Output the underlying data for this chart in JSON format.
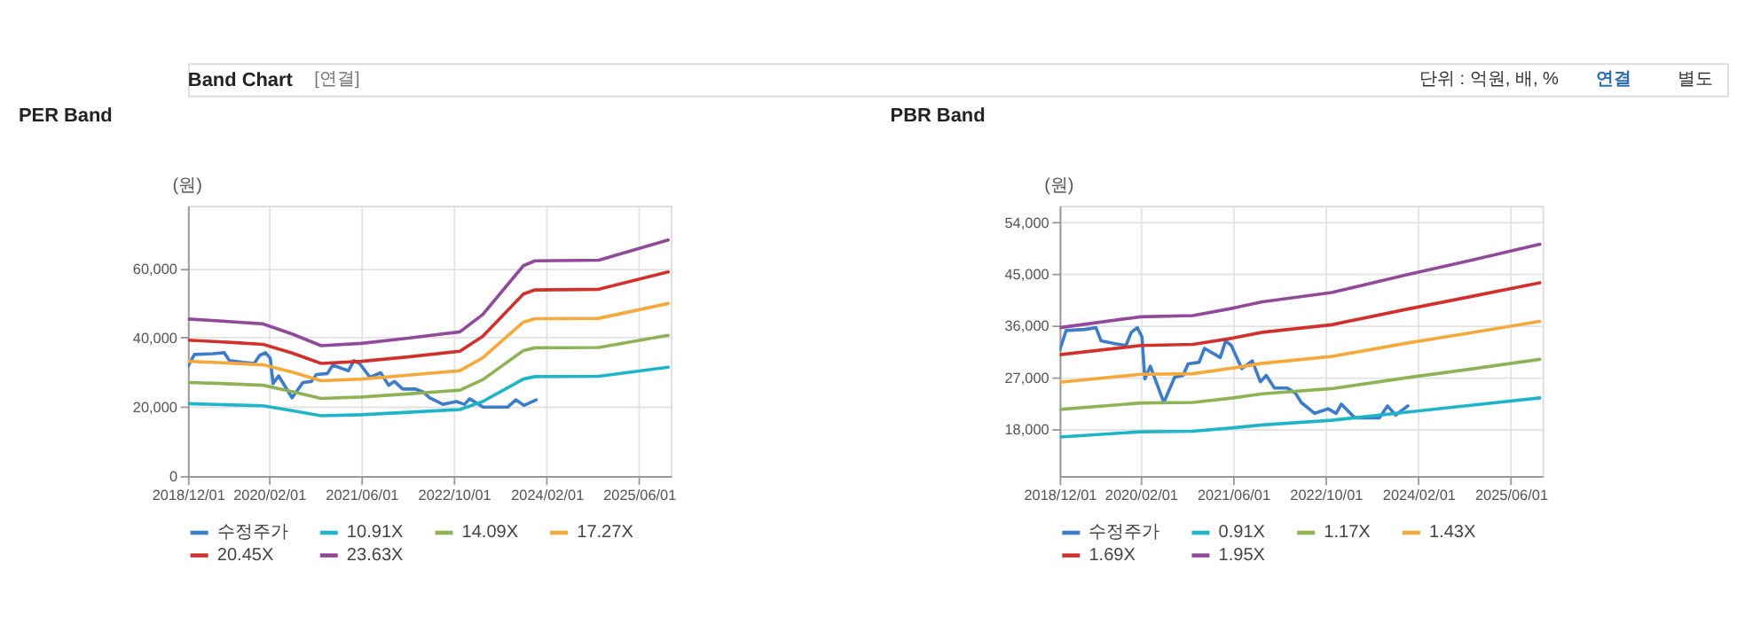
{
  "chart_data": [
    {
      "type": "line",
      "title": "PER Band",
      "ylabel": "(원)",
      "annotations": [
        "Band Chart",
        "[연결]",
        "단위 : 억원, 배, %",
        "연결",
        "별도"
      ],
      "xlim": [
        "2018-12-01",
        "2025-11-15"
      ],
      "xticks": [
        {
          "value": "2018-12-01",
          "label": "2018/12/01"
        },
        {
          "value": "2020-02-01",
          "label": "2020/02/01"
        },
        {
          "value": "2021-06-01",
          "label": "2021/06/01"
        },
        {
          "value": "2022-10-01",
          "label": "2022/10/01"
        },
        {
          "value": "2024-02-01",
          "label": "2024/02/01"
        },
        {
          "value": "2025-06-01",
          "label": "2025/06/01"
        }
      ],
      "ylim": [
        0,
        78000
      ],
      "yticks": [
        {
          "value": 0,
          "label": "0"
        },
        {
          "value": 20000,
          "label": "20,000"
        },
        {
          "value": 40000,
          "label": "40,000"
        },
        {
          "value": 60000,
          "label": "60,000"
        }
      ],
      "grid": true,
      "legend": "bottom",
      "series": [
        {
          "name": "수정주가",
          "color": "#3d7cc9",
          "x": [
            "2018-12-01",
            "2019-01-04",
            "2019-04-13",
            "2019-06-10",
            "2019-07-07",
            "2019-09-19",
            "2019-11-15",
            "2019-12-13",
            "2020-01-13",
            "2020-02-07",
            "2020-02-22",
            "2020-03-22",
            "2020-06-01",
            "2020-07-28",
            "2020-09-10",
            "2020-10-07",
            "2020-12-04",
            "2021-01-01",
            "2021-03-25",
            "2021-04-22",
            "2021-05-22",
            "2021-07-16",
            "2021-09-10",
            "2021-10-22",
            "2021-11-22",
            "2022-01-04",
            "2022-03-13",
            "2022-04-25",
            "2022-05-25",
            "2022-08-04",
            "2022-10-13",
            "2022-11-25",
            "2022-12-22",
            "2023-03-04",
            "2023-07-10",
            "2023-08-22",
            "2023-10-04",
            "2023-12-07"
          ],
          "values": [
            31700,
            35100,
            35300,
            35600,
            33300,
            32800,
            32500,
            34800,
            35600,
            34000,
            26700,
            28900,
            22600,
            27000,
            27300,
            29300,
            29600,
            32000,
            30400,
            33300,
            32500,
            28500,
            29800,
            26200,
            27300,
            25100,
            25100,
            24200,
            22600,
            20700,
            21500,
            20700,
            22300,
            19900,
            19900,
            22000,
            20400,
            22000
          ]
        },
        {
          "name": "10.91X",
          "color": "#1fb5c9",
          "x": [
            "2018-12-01",
            "2019-06-01",
            "2020-01-01",
            "2020-06-01",
            "2020-11-01",
            "2021-06-01",
            "2022-02-01",
            "2022-11-01",
            "2023-03-01",
            "2023-10-01",
            "2023-12-01",
            "2024-11-01",
            "2025-11-01"
          ],
          "values": [
            20900,
            20600,
            20300,
            18900,
            17400,
            17700,
            18400,
            19200,
            21500,
            28000,
            28700,
            28800,
            31400
          ]
        },
        {
          "name": "14.09X",
          "color": "#8db356",
          "x": [
            "2018-12-01",
            "2019-06-01",
            "2020-01-01",
            "2020-06-01",
            "2020-11-01",
            "2021-06-01",
            "2022-02-01",
            "2022-11-01",
            "2023-03-01",
            "2023-10-01",
            "2023-12-01",
            "2024-11-01",
            "2025-11-01"
          ],
          "values": [
            27000,
            26700,
            26200,
            24400,
            22400,
            22800,
            23700,
            24800,
            27800,
            36200,
            37000,
            37100,
            40600
          ]
        },
        {
          "name": "17.27X",
          "color": "#f5a93a",
          "x": [
            "2018-12-01",
            "2019-06-01",
            "2020-01-01",
            "2020-06-01",
            "2020-11-01",
            "2021-06-01",
            "2022-02-01",
            "2022-11-01",
            "2023-03-01",
            "2023-10-01",
            "2023-12-01",
            "2024-11-01",
            "2025-11-01"
          ],
          "values": [
            33100,
            32700,
            32100,
            30000,
            27500,
            28000,
            29100,
            30400,
            34100,
            44400,
            45400,
            45500,
            49800
          ]
        },
        {
          "name": "20.45X",
          "color": "#d0312d",
          "x": [
            "2018-12-01",
            "2019-06-01",
            "2020-01-01",
            "2020-06-01",
            "2020-11-01",
            "2021-06-01",
            "2022-02-01",
            "2022-11-01",
            "2023-03-01",
            "2023-10-01",
            "2023-12-01",
            "2024-11-01",
            "2025-11-01"
          ],
          "values": [
            39200,
            38700,
            38000,
            35500,
            32500,
            33100,
            34400,
            36000,
            40300,
            52500,
            53700,
            53900,
            58900
          ]
        },
        {
          "name": "23.63X",
          "color": "#91499a",
          "x": [
            "2018-12-01",
            "2019-06-01",
            "2020-01-01",
            "2020-06-01",
            "2020-11-01",
            "2021-06-01",
            "2022-02-01",
            "2022-11-01",
            "2023-03-01",
            "2023-10-01",
            "2023-12-01",
            "2024-11-01",
            "2025-11-01"
          ],
          "values": [
            45300,
            44700,
            43900,
            41000,
            37600,
            38300,
            39800,
            41600,
            46600,
            60700,
            62100,
            62300,
            68100
          ]
        }
      ]
    },
    {
      "type": "line",
      "title": "PBR Band",
      "ylabel": "(원)",
      "xlim": [
        "2018-12-01",
        "2025-11-15"
      ],
      "xticks": [
        {
          "value": "2018-12-01",
          "label": "2018/12/01"
        },
        {
          "value": "2020-02-01",
          "label": "2020/02/01"
        },
        {
          "value": "2021-06-01",
          "label": "2021/06/01"
        },
        {
          "value": "2022-10-01",
          "label": "2022/10/01"
        },
        {
          "value": "2024-02-01",
          "label": "2024/02/01"
        },
        {
          "value": "2025-06-01",
          "label": "2025/06/01"
        }
      ],
      "ylim": [
        9800,
        56800
      ],
      "yticks": [
        {
          "value": 18000,
          "label": "18,000"
        },
        {
          "value": 27000,
          "label": "27,000"
        },
        {
          "value": 36000,
          "label": "36,000"
        },
        {
          "value": 45000,
          "label": "45,000"
        },
        {
          "value": 54000,
          "label": "54,000"
        }
      ],
      "grid": true,
      "legend": "bottom",
      "series": [
        {
          "name": "수정주가",
          "color": "#3d7cc9",
          "x": [
            "2018-12-01",
            "2019-01-04",
            "2019-04-13",
            "2019-06-10",
            "2019-07-07",
            "2019-09-19",
            "2019-11-15",
            "2019-12-13",
            "2020-01-13",
            "2020-02-07",
            "2020-02-22",
            "2020-03-22",
            "2020-06-01",
            "2020-07-28",
            "2020-09-10",
            "2020-10-07",
            "2020-12-04",
            "2021-01-01",
            "2021-03-25",
            "2021-04-22",
            "2021-05-22",
            "2021-07-16",
            "2021-09-10",
            "2021-10-22",
            "2021-11-22",
            "2022-01-04",
            "2022-03-13",
            "2022-04-25",
            "2022-05-25",
            "2022-08-04",
            "2022-10-13",
            "2022-11-25",
            "2022-12-22",
            "2023-03-04",
            "2023-07-10",
            "2023-08-22",
            "2023-10-04",
            "2023-12-07"
          ],
          "values": [
            31700,
            35100,
            35300,
            35600,
            33300,
            32800,
            32500,
            34800,
            35600,
            34000,
            26700,
            28900,
            22600,
            27000,
            27300,
            29300,
            29600,
            32000,
            30400,
            33300,
            32500,
            28500,
            29800,
            26200,
            27300,
            25100,
            25100,
            24200,
            22600,
            20700,
            21500,
            20700,
            22300,
            19900,
            19900,
            22000,
            20400,
            22000
          ]
        },
        {
          "name": "0.91X",
          "color": "#1fb5c9",
          "x": [
            "2018-12-01",
            "2020-02-01",
            "2020-11-01",
            "2021-06-01",
            "2021-11-01",
            "2022-11-01",
            "2023-12-01",
            "2024-11-01",
            "2025-11-01"
          ],
          "values": [
            16600,
            17500,
            17600,
            18200,
            18700,
            19500,
            20900,
            22100,
            23400
          ]
        },
        {
          "name": "1.17X",
          "color": "#8db356",
          "x": [
            "2018-12-01",
            "2020-02-01",
            "2020-11-01",
            "2021-06-01",
            "2021-11-01",
            "2022-11-01",
            "2023-12-01",
            "2024-11-01",
            "2025-11-01"
          ],
          "values": [
            21400,
            22500,
            22600,
            23400,
            24100,
            25000,
            26900,
            28400,
            30100
          ]
        },
        {
          "name": "1.43X",
          "color": "#f5a93a",
          "x": [
            "2018-12-01",
            "2020-02-01",
            "2020-11-01",
            "2021-06-01",
            "2021-11-01",
            "2022-11-01",
            "2023-12-01",
            "2024-11-01",
            "2025-11-01"
          ],
          "values": [
            26100,
            27500,
            27600,
            28600,
            29400,
            30600,
            32900,
            34700,
            36700
          ]
        },
        {
          "name": "1.69X",
          "color": "#d0312d",
          "x": [
            "2018-12-01",
            "2020-02-01",
            "2020-11-01",
            "2021-06-01",
            "2021-11-01",
            "2022-11-01",
            "2023-12-01",
            "2024-11-01",
            "2025-11-01"
          ],
          "values": [
            30900,
            32500,
            32700,
            33800,
            34800,
            36100,
            38800,
            41000,
            43400
          ]
        },
        {
          "name": "1.95X",
          "color": "#91499a",
          "x": [
            "2018-12-01",
            "2020-02-01",
            "2020-11-01",
            "2021-06-01",
            "2021-11-01",
            "2022-11-01",
            "2023-12-01",
            "2024-11-01",
            "2025-11-01"
          ],
          "values": [
            35600,
            37500,
            37700,
            39000,
            40100,
            41700,
            44800,
            47300,
            50100
          ]
        }
      ]
    }
  ]
}
